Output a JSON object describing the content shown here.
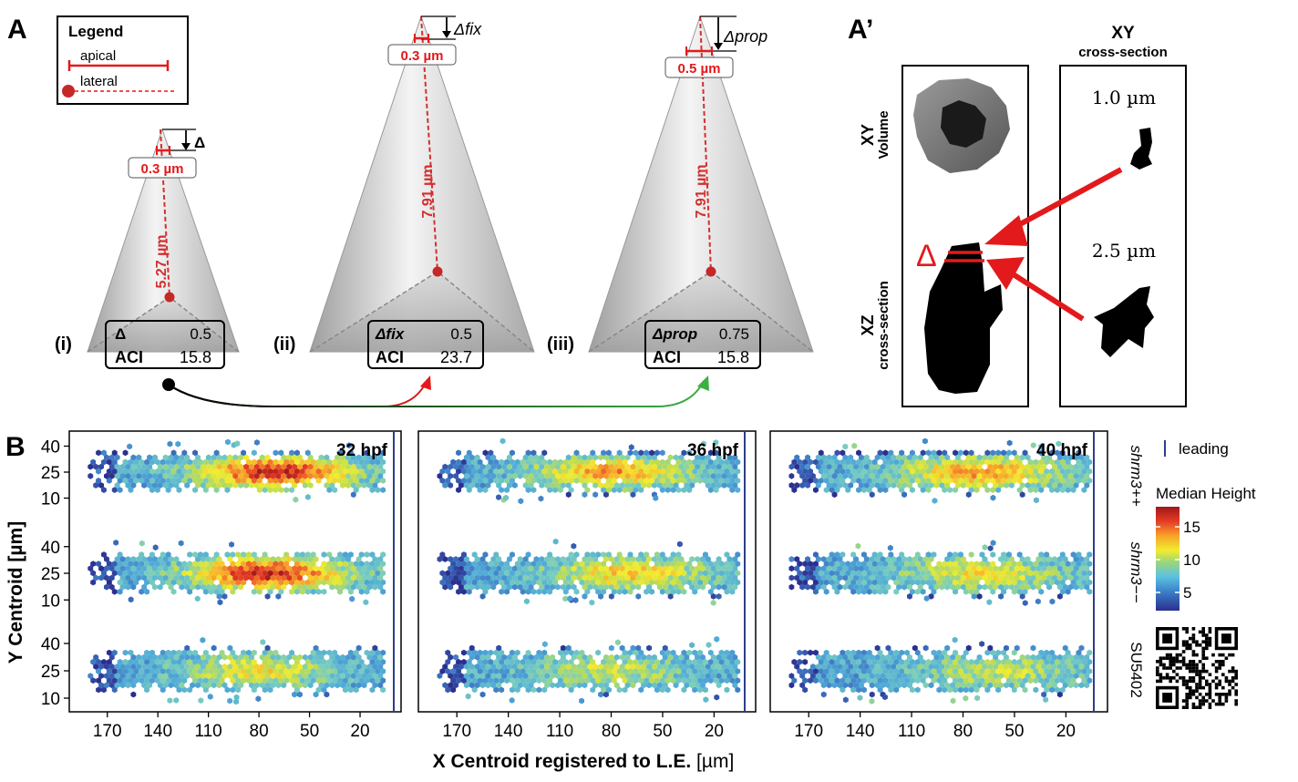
{
  "panelA": {
    "label": "A",
    "legend": {
      "title": "Legend",
      "apical": "apical",
      "lateral": "lateral"
    },
    "cones": [
      {
        "roman": "(i)",
        "apical_width": "0.3 µm",
        "lateral_length": "5.27 µm",
        "delta_label": "Δ",
        "delta_name": "Δ",
        "delta_value": "0.5",
        "aci_label": "ACI",
        "aci_value": "15.8"
      },
      {
        "roman": "(ii)",
        "apical_width": "0.3 µm",
        "lateral_length": "7.91 µm",
        "delta_label": "Δfix",
        "delta_name": "Δfix",
        "delta_value": "0.5",
        "aci_label": "ACI",
        "aci_value": "23.7"
      },
      {
        "roman": "(iii)",
        "apical_width": "0.5 µm",
        "lateral_length": "7.91 µm",
        "delta_label": "Δprop",
        "delta_name": "Δprop",
        "delta_value": "0.75",
        "aci_label": "ACI",
        "aci_value": "15.8"
      }
    ],
    "colors": {
      "red": "#e31a1c",
      "green": "#3cb043",
      "black": "#000000"
    }
  },
  "panelAprime": {
    "label": "A’",
    "xy_title": "XY",
    "xy_subtitle": "cross-section",
    "xy_volume": "XY",
    "xy_volume_sub": "Volume",
    "xz": "XZ",
    "xz_sub": "cross-section",
    "delta": "Δ",
    "depth1": "1.0 µm",
    "depth2": "2.5 µm"
  },
  "panelB": {
    "label": "B",
    "ylabel": "Y Centroid [µm]",
    "xlabel_bold": "X Centroid registered to L.E.",
    "xlabel_unit": " [µm]",
    "ticks_x": [
      "170",
      "140",
      "110",
      "80",
      "50",
      "20"
    ],
    "ticks_y": [
      "40",
      "25",
      "10"
    ],
    "panel_titles": [
      "32 hpf",
      "36 hpf",
      "40 hpf"
    ],
    "row_labels": [
      "shrm3++",
      "shrm3−−",
      "SU5402"
    ],
    "legend_leading": "leading",
    "colorbar_title": "Median Height",
    "colorbar_ticks": [
      "15",
      "10",
      "5"
    ]
  },
  "chart_data": {
    "type": "heatmap",
    "title": "",
    "xlabel": "X Centroid registered to L.E. [µm]",
    "ylabel": "Y Centroid [µm]",
    "xlim": [
      185,
      0
    ],
    "ylim": [
      5,
      45
    ],
    "colorbar": {
      "label": "Median Height",
      "range": [
        3,
        18
      ],
      "ticks": [
        5,
        10,
        15
      ]
    },
    "facets": {
      "columns": [
        "32 hpf",
        "36 hpf",
        "40 hpf"
      ],
      "rows": [
        "shrm3++",
        "shrm3−−",
        "SU5402"
      ],
      "leading_edge_x": 5,
      "approx_peak_median_height": [
        [
          17,
          14,
          14
        ],
        [
          17,
          13,
          12
        ],
        [
          12,
          11,
          11
        ]
      ],
      "approx_peak_x": [
        [
          70,
          80,
          70
        ],
        [
          75,
          70,
          70
        ],
        [
          80,
          80,
          60
        ]
      ]
    }
  }
}
